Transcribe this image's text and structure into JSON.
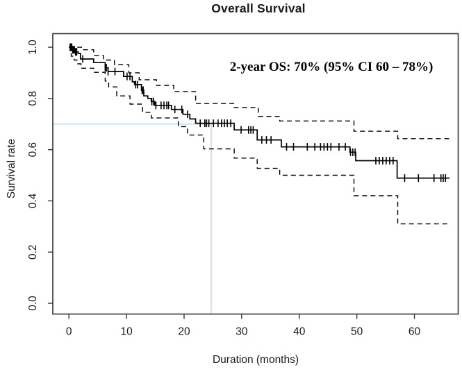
{
  "chart_data": {
    "type": "line",
    "subtype": "kaplan_meier_step",
    "title": "Overall Survival",
    "xlabel": "Duration (months)",
    "ylabel": "Survival rate",
    "xlim": [
      -2.8,
      67.6
    ],
    "ylim": [
      -0.042,
      1.053
    ],
    "x_ticks": [
      0,
      10,
      20,
      30,
      40,
      50,
      60
    ],
    "y_ticks": [
      0.0,
      0.2,
      0.4,
      0.6,
      0.8,
      1.0
    ],
    "grid": false,
    "legend": "none",
    "annotation": {
      "text": "2-year OS: 70% (95% CI 60 – 78%)"
    },
    "key_values": {
      "two_year_os_pct": 70,
      "ci_low_pct": 60,
      "ci_high_pct": 78
    },
    "reference": {
      "time_months": 24.7,
      "survival": 0.7,
      "color": "#c3d7ea"
    },
    "end_time": 66.1,
    "series": [
      {
        "name": "Overall survival (KM estimate)",
        "style": "solid",
        "color": "#000000",
        "steps": [
          [
            0,
            1.0
          ],
          [
            0.6,
            0.99
          ],
          [
            1.0,
            0.982
          ],
          [
            1.6,
            0.976
          ],
          [
            2.0,
            0.954
          ],
          [
            4.3,
            0.94
          ],
          [
            6.3,
            0.92
          ],
          [
            6.8,
            0.905
          ],
          [
            9.5,
            0.886
          ],
          [
            11.0,
            0.865
          ],
          [
            11.4,
            0.854
          ],
          [
            12.6,
            0.832
          ],
          [
            13.0,
            0.81
          ],
          [
            13.7,
            0.8
          ],
          [
            14.3,
            0.788
          ],
          [
            14.9,
            0.773
          ],
          [
            17.8,
            0.757
          ],
          [
            19.8,
            0.738
          ],
          [
            21.0,
            0.72
          ],
          [
            22.0,
            0.703
          ],
          [
            28.7,
            0.677
          ],
          [
            32.7,
            0.638
          ],
          [
            36.9,
            0.611
          ],
          [
            48.8,
            0.59
          ],
          [
            49.8,
            0.557
          ],
          [
            57.0,
            0.489
          ]
        ]
      },
      {
        "name": "95% CI upper",
        "style": "dashed",
        "color": "#000000",
        "steps": [
          [
            0,
            1.0
          ],
          [
            2.2,
            0.99
          ],
          [
            4.3,
            0.968
          ],
          [
            6.0,
            0.95
          ],
          [
            7.9,
            0.932
          ],
          [
            10.4,
            0.9
          ],
          [
            12.2,
            0.873
          ],
          [
            15.2,
            0.851
          ],
          [
            18.2,
            0.827
          ],
          [
            22.0,
            0.78
          ],
          [
            28.7,
            0.765
          ],
          [
            32.9,
            0.73
          ],
          [
            36.6,
            0.712
          ],
          [
            49.5,
            0.672
          ],
          [
            57.1,
            0.643
          ]
        ]
      },
      {
        "name": "95% CI lower",
        "style": "dashed",
        "color": "#000000",
        "steps": [
          [
            0,
            1.0
          ],
          [
            0.4,
            0.965
          ],
          [
            0.9,
            0.95
          ],
          [
            1.4,
            0.935
          ],
          [
            2.1,
            0.918
          ],
          [
            4.3,
            0.902
          ],
          [
            6.3,
            0.868
          ],
          [
            6.9,
            0.845
          ],
          [
            8.3,
            0.81
          ],
          [
            10.6,
            0.778
          ],
          [
            12.8,
            0.746
          ],
          [
            14.3,
            0.724
          ],
          [
            19.0,
            0.69
          ],
          [
            20.6,
            0.657
          ],
          [
            23.4,
            0.603
          ],
          [
            28.7,
            0.567
          ],
          [
            32.7,
            0.527
          ],
          [
            36.6,
            0.5
          ],
          [
            49.5,
            0.42
          ],
          [
            57.1,
            0.31
          ]
        ]
      }
    ],
    "censor_times": [
      0.2,
      0.35,
      0.5,
      0.65,
      0.8,
      0.95,
      1.15,
      1.35,
      2.4,
      6.3,
      6.5,
      6.8,
      8.0,
      10.1,
      10.6,
      11.6,
      11.9,
      12.7,
      12.9,
      14.4,
      14.7,
      15.1,
      16.0,
      16.5,
      17.0,
      17.3,
      18.4,
      19.6,
      20.6,
      22.8,
      23.6,
      23.9,
      24.3,
      25.1,
      25.9,
      26.5,
      27.0,
      27.5,
      28.1,
      29.9,
      31.2,
      31.6,
      32.0,
      33.5,
      34.3,
      35.1,
      37.8,
      39.0,
      41.4,
      42.7,
      43.7,
      44.3,
      44.9,
      45.5,
      46.9,
      48.0,
      48.9,
      49.3,
      49.7,
      53.3,
      53.9,
      54.5,
      55.1,
      55.7,
      56.3,
      58.3,
      60.7,
      63.4,
      64.6,
      65.0,
      65.4
    ]
  },
  "style_colors": {
    "curve": "#000000",
    "axis": "#333333",
    "reference_blue": "#c3d7ea"
  }
}
